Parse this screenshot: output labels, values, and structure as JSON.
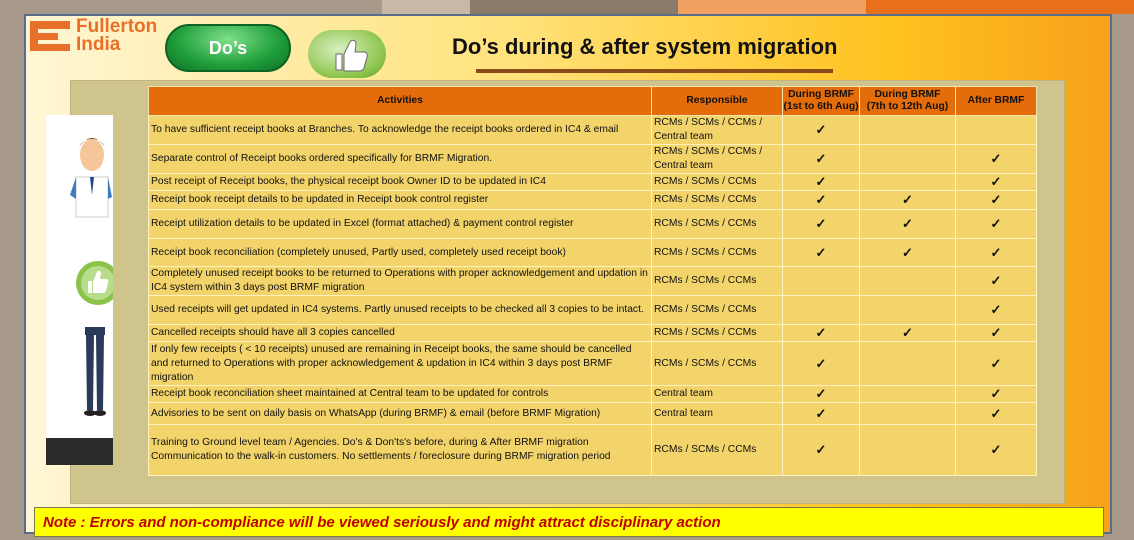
{
  "brand": {
    "name_line1": "Fullerton",
    "name_line2": "India"
  },
  "header": {
    "dos_label": "Do’s",
    "title": "Do’s during & after system migration"
  },
  "table": {
    "headers": [
      "Activities",
      "Responsible",
      "During BRMF\n(1st to 6th Aug)",
      "During BRMF\n(7th to 12th Aug)",
      "After BRMF"
    ],
    "check_symbol": "✓",
    "rows": [
      {
        "activity": "To have sufficient receipt books at Branches. To acknowledge the receipt books ordered in IC4 & email",
        "responsible": "RCMs / SCMs / CCMs / Central team",
        "c1": true,
        "c2": false,
        "c3": false
      },
      {
        "activity": "Separate control of Receipt books ordered specifically for BRMF Migration.",
        "responsible": "RCMs / SCMs / CCMs / Central team",
        "c1": true,
        "c2": false,
        "c3": true
      },
      {
        "activity": "Post receipt of Receipt books, the physical receipt book Owner ID to be updated in IC4",
        "responsible": "RCMs / SCMs / CCMs",
        "c1": true,
        "c2": false,
        "c3": true
      },
      {
        "activity": "Receipt book receipt details to be updated in Receipt book control register",
        "responsible": "RCMs / SCMs / CCMs",
        "c1": true,
        "c2": true,
        "c3": true
      },
      {
        "activity": "Receipt utilization details to be updated in Excel (format attached) & payment control register",
        "responsible": "RCMs / SCMs / CCMs",
        "c1": true,
        "c2": true,
        "c3": true
      },
      {
        "activity": "Receipt book reconciliation (completely unused, Partly used, completely used receipt book)",
        "responsible": "RCMs / SCMs / CCMs",
        "c1": true,
        "c2": true,
        "c3": true
      },
      {
        "activity": "Completely unused receipt books to be returned to Operations with proper acknowledgement and updation in IC4 system within 3 days post BRMF migration",
        "responsible": "RCMs / SCMs / CCMs",
        "c1": false,
        "c2": false,
        "c3": true
      },
      {
        "activity": "Used receipts will get updated in IC4 systems. Partly unused receipts to be checked all 3 copies to be intact.",
        "responsible": "RCMs / SCMs / CCMs",
        "c1": false,
        "c2": false,
        "c3": true
      },
      {
        "activity": "Cancelled receipts should have all 3 copies cancelled",
        "responsible": "RCMs / SCMs / CCMs",
        "c1": true,
        "c2": true,
        "c3": true
      },
      {
        "activity": "If only few receipts ( < 10 receipts) unused are remaining in Receipt books, the same should be cancelled and returned to Operations with proper acknowledgement & updation in IC4 within 3 days post BRMF migration",
        "responsible": "RCMs / SCMs / CCMs",
        "c1": true,
        "c2": false,
        "c3": true
      },
      {
        "activity": "Receipt book reconciliation sheet maintained at Central team to be updated for controls",
        "responsible": "Central team",
        "c1": true,
        "c2": false,
        "c3": true
      },
      {
        "activity": "Advisories to be sent on daily basis on WhatsApp (during BRMF) & email (before BRMF Migration)",
        "responsible": "Central team",
        "c1": true,
        "c2": false,
        "c3": true
      },
      {
        "activity": "Training to Ground level team / Agencies. Do's & Don'ts's before, during & After BRMF migration Communication to the walk-in customers. No settlements / foreclosure during BRMF migration period",
        "responsible": "RCMs / SCMs / CCMs",
        "c1": true,
        "c2": false,
        "c3": true
      }
    ]
  },
  "note": "Note : Errors and non-compliance will be viewed seriously and might attract disciplinary action",
  "colors": {
    "header_orange": "#e46c0a",
    "cell_yellow": "#f3d46a",
    "note_red": "#c00000",
    "brand_orange": "#e8702a"
  }
}
